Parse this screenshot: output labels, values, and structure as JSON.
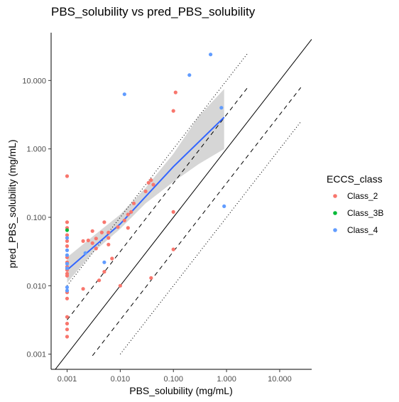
{
  "chart_data": {
    "type": "scatter",
    "title": "PBS_solubility vs pred_PBS_solubility",
    "xlabel": "PBS_solubility (mg/mL)",
    "ylabel": "pred_PBS_solubility (mg/mL)",
    "x_scale": "log10",
    "y_scale": "log10",
    "xlim": [
      0.0005,
      40
    ],
    "ylim": [
      0.0006,
      50
    ],
    "x_ticks": [
      0.001,
      0.01,
      0.1,
      1,
      10
    ],
    "x_tick_labels": [
      "0.001",
      "0.010",
      "0.100",
      "1.000",
      "10.000"
    ],
    "y_ticks": [
      0.001,
      0.01,
      0.1,
      1,
      10
    ],
    "y_tick_labels": [
      "0.001",
      "0.010",
      "0.100",
      "1.000",
      "10.000"
    ],
    "grid": false,
    "legend": {
      "title": "ECCS_class",
      "position": "right",
      "entries": [
        {
          "label": "Class_2",
          "color": "#F8766D"
        },
        {
          "label": "Class_3B",
          "color": "#00BA38"
        },
        {
          "label": "Class_4",
          "color": "#619CFF"
        }
      ]
    },
    "reference_lines": [
      {
        "style": "solid",
        "offset_log10": 0,
        "x_range": [
          0.0005,
          40
        ]
      },
      {
        "style": "dashed",
        "offset_log10": 0.5,
        "x_range": [
          0.001,
          2.5
        ]
      },
      {
        "style": "dashed",
        "offset_log10": -0.5,
        "x_range": [
          0.003,
          25
        ]
      },
      {
        "style": "dotted",
        "offset_log10": 1,
        "x_range": [
          0.001,
          2.5
        ]
      },
      {
        "style": "dotted",
        "offset_log10": -1,
        "x_range": [
          0.01,
          25
        ]
      }
    ],
    "fit": {
      "method": "linear fit on log scale",
      "color": "#3366FF",
      "x_range": [
        0.001,
        0.9
      ],
      "line": [
        [
          0.001,
          0.017
        ],
        [
          0.01,
          0.08
        ],
        [
          0.1,
          0.55
        ],
        [
          0.9,
          2.9
        ]
      ],
      "ribbon": [
        {
          "x": 0.001,
          "lo": 0.011,
          "hi": 0.026
        },
        {
          "x": 0.003,
          "lo": 0.03,
          "hi": 0.052
        },
        {
          "x": 0.01,
          "lo": 0.068,
          "hi": 0.11
        },
        {
          "x": 0.03,
          "lo": 0.16,
          "hi": 0.27
        },
        {
          "x": 0.1,
          "lo": 0.33,
          "hi": 0.85
        },
        {
          "x": 0.3,
          "lo": 0.6,
          "hi": 3.0
        },
        {
          "x": 0.9,
          "lo": 1.0,
          "hi": 7.5
        }
      ]
    },
    "series": [
      {
        "name": "Class_2",
        "color": "#F8766D",
        "points": [
          [
            0.001,
            0.4
          ],
          [
            0.001,
            0.085
          ],
          [
            0.001,
            0.07
          ],
          [
            0.001,
            0.055
          ],
          [
            0.001,
            0.045
          ],
          [
            0.001,
            0.038
          ],
          [
            0.001,
            0.026
          ],
          [
            0.001,
            0.022
          ],
          [
            0.001,
            0.019
          ],
          [
            0.001,
            0.017
          ],
          [
            0.001,
            0.015
          ],
          [
            0.001,
            0.014
          ],
          [
            0.001,
            0.008
          ],
          [
            0.001,
            0.0065
          ],
          [
            0.001,
            0.0035
          ],
          [
            0.001,
            0.0028
          ],
          [
            0.001,
            0.0023
          ],
          [
            0.001,
            0.0018
          ],
          [
            0.002,
            0.045
          ],
          [
            0.002,
            0.009
          ],
          [
            0.0025,
            0.046
          ],
          [
            0.003,
            0.063
          ],
          [
            0.003,
            0.042
          ],
          [
            0.0035,
            0.049
          ],
          [
            0.0035,
            0.035
          ],
          [
            0.004,
            0.012
          ],
          [
            0.0045,
            0.06
          ],
          [
            0.005,
            0.085
          ],
          [
            0.005,
            0.016
          ],
          [
            0.006,
            0.06
          ],
          [
            0.006,
            0.05
          ],
          [
            0.006,
            0.04
          ],
          [
            0.007,
            0.025
          ],
          [
            0.009,
            0.072
          ],
          [
            0.01,
            0.01
          ],
          [
            0.012,
            0.09
          ],
          [
            0.014,
            0.11
          ],
          [
            0.014,
            0.07
          ],
          [
            0.016,
            0.12
          ],
          [
            0.018,
            0.16
          ],
          [
            0.03,
            0.24
          ],
          [
            0.034,
            0.32
          ],
          [
            0.038,
            0.35
          ],
          [
            0.038,
            0.013
          ],
          [
            0.042,
            0.3
          ],
          [
            0.1,
            3.6
          ],
          [
            0.11,
            6.7
          ],
          [
            0.1,
            0.12
          ],
          [
            0.1,
            0.034
          ]
        ]
      },
      {
        "name": "Class_3B",
        "color": "#00BA38",
        "points": [
          [
            0.001,
            0.065
          ]
        ]
      },
      {
        "name": "Class_4",
        "color": "#619CFF",
        "points": [
          [
            0.001,
            0.05
          ],
          [
            0.001,
            0.033
          ],
          [
            0.001,
            0.028
          ],
          [
            0.001,
            0.021
          ],
          [
            0.001,
            0.018
          ],
          [
            0.001,
            0.0095
          ],
          [
            0.001,
            0.0085
          ],
          [
            0.0022,
            0.03
          ],
          [
            0.005,
            0.022
          ],
          [
            0.012,
            6.3
          ],
          [
            0.2,
            12.0
          ],
          [
            0.5,
            24.0
          ],
          [
            0.8,
            4.0
          ],
          [
            0.9,
            0.145
          ]
        ]
      }
    ]
  }
}
